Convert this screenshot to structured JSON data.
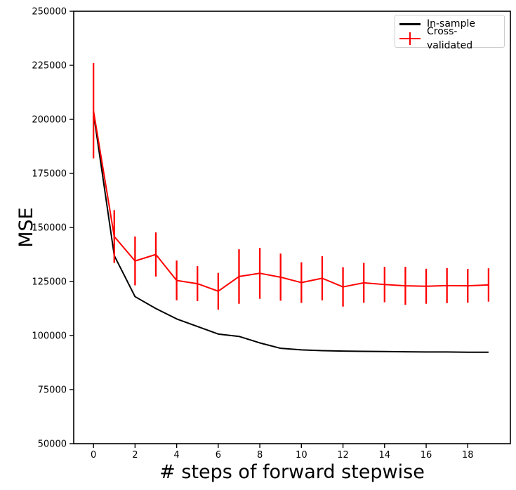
{
  "figure": {
    "background": "#ffffff"
  },
  "chart_data": {
    "type": "line",
    "title": "",
    "xlabel": "# steps of forward stepwise",
    "ylabel": "MSE",
    "xlim": [
      -0.95,
      20.05
    ],
    "ylim": [
      50000,
      250000
    ],
    "xticks": [
      0,
      2,
      4,
      6,
      8,
      10,
      12,
      14,
      16,
      18
    ],
    "yticks": [
      50000,
      75000,
      100000,
      125000,
      150000,
      175000,
      200000,
      225000,
      250000
    ],
    "grid": false,
    "legend_position": "upper right",
    "x": [
      0,
      1,
      2,
      3,
      4,
      5,
      6,
      7,
      8,
      9,
      10,
      11,
      12,
      13,
      14,
      15,
      16,
      17,
      18,
      19
    ],
    "series": [
      {
        "name": "In-sample",
        "color": "#000000",
        "values": [
          203000,
          137000,
          118000,
          112500,
          107700,
          104200,
          100700,
          99600,
          96600,
          94100,
          93400,
          93000,
          92800,
          92700,
          92600,
          92500,
          92400,
          92400,
          92300,
          92300
        ]
      },
      {
        "name": "Cross-validated",
        "color": "#ff0000",
        "values": [
          204000,
          145800,
          134500,
          137500,
          125500,
          124000,
          120500,
          127300,
          128800,
          127000,
          124500,
          126500,
          122500,
          124400,
          123600,
          123000,
          122800,
          123100,
          123000,
          123400
        ],
        "yerr": [
          22000,
          12200,
          11300,
          10200,
          9200,
          8100,
          8500,
          12600,
          11800,
          10900,
          9400,
          10200,
          9100,
          9200,
          8200,
          8800,
          8100,
          8100,
          7800,
          7700
        ]
      }
    ]
  }
}
